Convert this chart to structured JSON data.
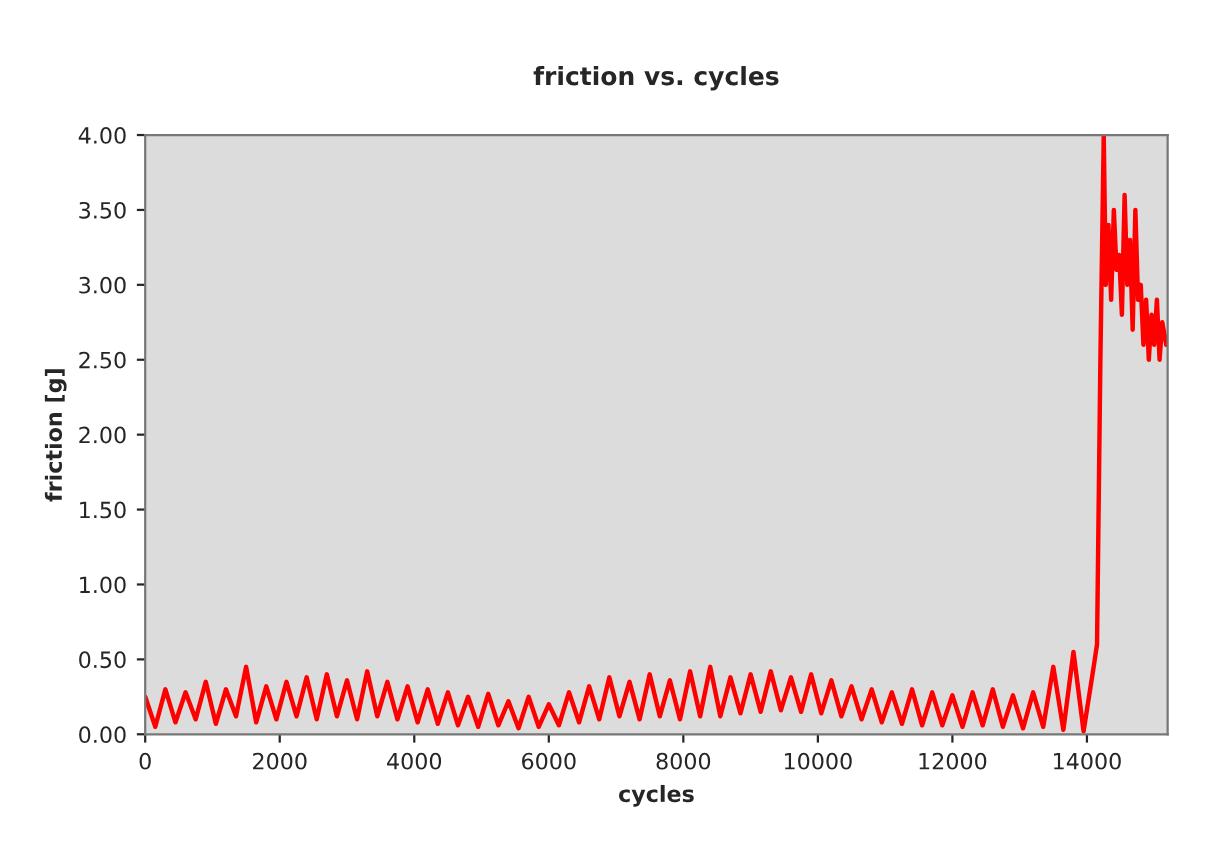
{
  "chart_data": {
    "type": "line",
    "title": "friction vs. cycles",
    "xlabel": "cycles",
    "ylabel": "friction [g]",
    "xlim": [
      0,
      15200
    ],
    "xticks": [
      0,
      2000,
      4000,
      6000,
      8000,
      10000,
      12000,
      14000
    ],
    "ylim": [
      0,
      4
    ],
    "yticks": [
      {
        "value": 0,
        "label": "0.00"
      },
      {
        "value": 0.5,
        "label": "0.50"
      },
      {
        "value": 1,
        "label": "1.00"
      },
      {
        "value": 1.5,
        "label": "1.50"
      },
      {
        "value": 2,
        "label": "2.00"
      },
      {
        "value": 2.5,
        "label": "2.50"
      },
      {
        "value": 3,
        "label": "3.00"
      },
      {
        "value": 3.5,
        "label": "3.50"
      },
      {
        "value": 4,
        "label": "4.00"
      }
    ],
    "grid": false,
    "legend": false,
    "marker": "none",
    "line_style": "solid",
    "series": [
      {
        "color": "#ff0000",
        "x": [
          0,
          150,
          300,
          450,
          600,
          750,
          900,
          1050,
          1200,
          1350,
          1500,
          1650,
          1800,
          1950,
          2100,
          2250,
          2400,
          2550,
          2700,
          2850,
          3000,
          3150,
          3300,
          3450,
          3600,
          3750,
          3900,
          4050,
          4200,
          4350,
          4500,
          4650,
          4800,
          4950,
          5100,
          5250,
          5400,
          5550,
          5700,
          5850,
          6000,
          6150,
          6300,
          6450,
          6600,
          6750,
          6900,
          7050,
          7200,
          7350,
          7500,
          7650,
          7800,
          7950,
          8100,
          8250,
          8400,
          8550,
          8700,
          8850,
          9000,
          9150,
          9300,
          9450,
          9600,
          9750,
          9900,
          10050,
          10200,
          10350,
          10500,
          10650,
          10800,
          10950,
          11100,
          11250,
          11400,
          11550,
          11700,
          11850,
          12000,
          12150,
          12300,
          12450,
          12600,
          12750,
          12900,
          13050,
          13200,
          13350,
          13500,
          13650,
          13800,
          13950,
          14100,
          14150,
          14200,
          14250,
          14280,
          14320,
          14360,
          14400,
          14440,
          14480,
          14520,
          14560,
          14600,
          14640,
          14680,
          14720,
          14760,
          14800,
          14840,
          14880,
          14920,
          14960,
          15000,
          15040,
          15080,
          15120,
          15180
        ],
        "values": [
          0.25,
          0.05,
          0.3,
          0.08,
          0.28,
          0.1,
          0.35,
          0.07,
          0.3,
          0.12,
          0.45,
          0.08,
          0.32,
          0.1,
          0.35,
          0.12,
          0.38,
          0.1,
          0.4,
          0.12,
          0.36,
          0.1,
          0.42,
          0.12,
          0.35,
          0.1,
          0.32,
          0.08,
          0.3,
          0.07,
          0.28,
          0.06,
          0.25,
          0.05,
          0.27,
          0.06,
          0.22,
          0.04,
          0.25,
          0.05,
          0.2,
          0.06,
          0.28,
          0.08,
          0.32,
          0.1,
          0.38,
          0.12,
          0.35,
          0.1,
          0.4,
          0.12,
          0.36,
          0.1,
          0.42,
          0.12,
          0.45,
          0.12,
          0.38,
          0.14,
          0.4,
          0.15,
          0.42,
          0.16,
          0.38,
          0.15,
          0.4,
          0.14,
          0.36,
          0.12,
          0.32,
          0.1,
          0.3,
          0.08,
          0.28,
          0.07,
          0.3,
          0.06,
          0.28,
          0.06,
          0.26,
          0.05,
          0.28,
          0.06,
          0.3,
          0.05,
          0.26,
          0.04,
          0.28,
          0.05,
          0.45,
          0.03,
          0.55,
          0.02,
          0.45,
          0.6,
          2.5,
          4.0,
          3.0,
          3.4,
          2.9,
          3.5,
          3.1,
          3.2,
          2.8,
          3.6,
          3.0,
          3.3,
          2.7,
          3.5,
          2.9,
          3.0,
          2.6,
          2.9,
          2.5,
          2.8,
          2.6,
          2.9,
          2.5,
          2.75,
          2.6
        ]
      }
    ]
  }
}
